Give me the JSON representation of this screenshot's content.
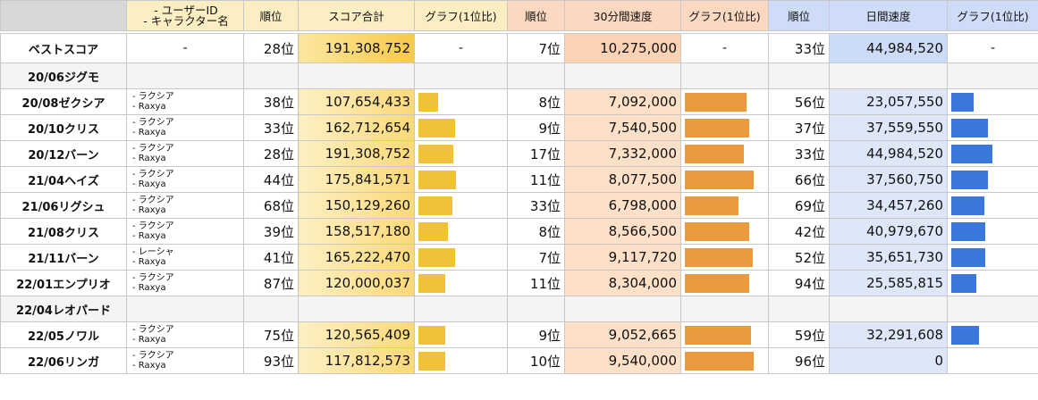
{
  "header": {
    "user_line1": "- ユーザーID",
    "user_line2": "- キャラクター名",
    "rank": "順位",
    "score_total": "スコア合計",
    "graph": "グラフ(1位比)",
    "speed30": "30分間速度",
    "daily_speed": "日間速度"
  },
  "best": {
    "label": "ベストスコア",
    "user": "-",
    "score_rank": "28位",
    "score": "191,308,752",
    "score_graph": "-",
    "speed30_rank": "7位",
    "speed30": "10,275,000",
    "speed30_graph": "-",
    "daily_rank": "33位",
    "daily": "44,984,520",
    "daily_graph": "-"
  },
  "rows": [
    {
      "event": "20/06ジグモ",
      "empty": true
    },
    {
      "event": "20/08ゼクシア",
      "user1": "- ラクシア",
      "user2": "- Raxya",
      "score_rank": "38位",
      "score": "107,654,433",
      "score_bar": 0.4,
      "speed30_rank": "8位",
      "speed30": "7,092,000",
      "speed30_bar": 0.82,
      "daily_rank": "56位",
      "daily": "23,057,550",
      "daily_bar": 0.55
    },
    {
      "event": "20/10クリス",
      "user1": "- ラクシア",
      "user2": "- Raxya",
      "score_rank": "33位",
      "score": "162,712,654",
      "score_bar": 0.75,
      "speed30_rank": "9位",
      "speed30": "7,540,500",
      "speed30_bar": 0.86,
      "daily_rank": "37位",
      "daily": "37,559,550",
      "daily_bar": 0.9
    },
    {
      "event": "20/12バーン",
      "user1": "- ラクシア",
      "user2": "- Raxya",
      "score_rank": "28位",
      "score": "191,308,752",
      "score_bar": 0.73,
      "speed30_rank": "17位",
      "speed30": "7,332,000",
      "speed30_bar": 0.78,
      "daily_rank": "33位",
      "daily": "44,984,520",
      "daily_bar": 1.0
    },
    {
      "event": "21/04ヘイズ",
      "user1": "- ラクシア",
      "user2": "- Raxya",
      "score_rank": "44位",
      "score": "175,841,571",
      "score_bar": 0.78,
      "speed30_rank": "11位",
      "speed30": "8,077,500",
      "speed30_bar": 0.92,
      "daily_rank": "66位",
      "daily": "37,560,750",
      "daily_bar": 0.9
    },
    {
      "event": "21/06リグシュ",
      "user1": "- ラクシア",
      "user2": "- Raxya",
      "score_rank": "68位",
      "score": "150,129,260",
      "score_bar": 0.7,
      "speed30_rank": "33位",
      "speed30": "6,798,000",
      "speed30_bar": 0.72,
      "daily_rank": "69位",
      "daily": "34,457,260",
      "daily_bar": 0.8
    },
    {
      "event": "21/08クリス",
      "user1": "- ラクシア",
      "user2": "- Raxya",
      "score_rank": "39位",
      "score": "158,517,180",
      "score_bar": 0.62,
      "speed30_rank": "8位",
      "speed30": "8,566,500",
      "speed30_bar": 0.86,
      "daily_rank": "42位",
      "daily": "40,979,670",
      "daily_bar": 0.83
    },
    {
      "event": "21/11バーン",
      "user1": "- レーシャ",
      "user2": "- Raxya",
      "score_rank": "41位",
      "score": "165,222,470",
      "score_bar": 0.75,
      "speed30_rank": "7位",
      "speed30": "9,117,720",
      "speed30_bar": 0.9,
      "daily_rank": "52位",
      "daily": "35,651,730",
      "daily_bar": 0.82
    },
    {
      "event": "22/01エンプリオ",
      "user1": "- ラクシア",
      "user2": "- Raxya",
      "score_rank": "87位",
      "score": "120,000,037",
      "score_bar": 0.56,
      "speed30_rank": "11位",
      "speed30": "8,304,000",
      "speed30_bar": 0.86,
      "daily_rank": "94位",
      "daily": "25,585,815",
      "daily_bar": 0.6
    },
    {
      "event": "22/04レオパード",
      "empty": true
    },
    {
      "event": "22/05ノワル",
      "user1": "- ラクシア",
      "user2": "- Raxya",
      "score_rank": "75位",
      "score": "120,565,409",
      "score_bar": 0.56,
      "speed30_rank": "9位",
      "speed30": "9,052,665",
      "speed30_bar": 0.88,
      "daily_rank": "59位",
      "daily": "32,291,608",
      "daily_bar": 0.68
    },
    {
      "event": "22/06リンガ",
      "user1": "- ラクシア",
      "user2": "- Raxya",
      "score_rank": "93位",
      "score": "117,812,573",
      "score_bar": 0.55,
      "speed30_rank": "10位",
      "speed30": "9,540,000",
      "speed30_bar": 0.92,
      "daily_rank": "96位",
      "daily": "0",
      "daily_bar": 0
    }
  ]
}
